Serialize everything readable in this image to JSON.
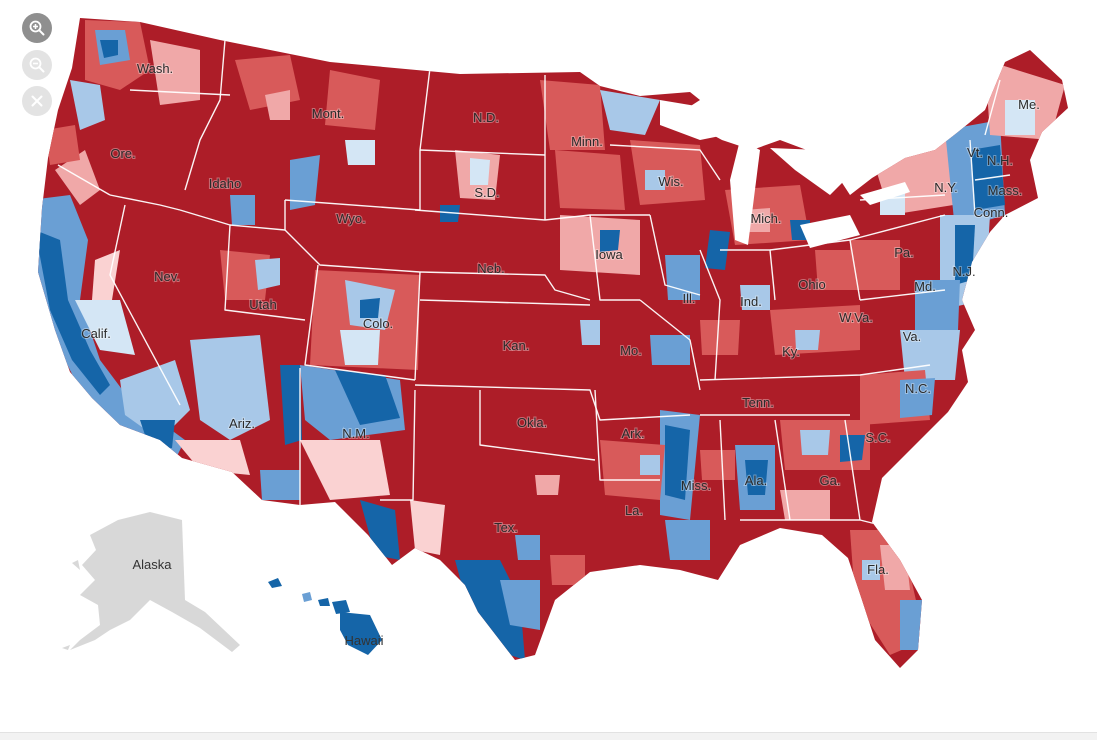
{
  "controls": {
    "zoom_in_icon": "zoom-in-icon",
    "zoom_out_icon": "zoom-out-icon",
    "close_icon": "close-icon"
  },
  "colors": {
    "strong_red": "#ad1d28",
    "mid_red": "#d85a5a",
    "light_red": "#f0a8a8",
    "pale_red": "#fad2d2",
    "strong_blue": "#1565a8",
    "mid_blue": "#6a9fd4",
    "light_blue": "#a8c8e8",
    "pale_blue": "#d4e6f5",
    "alaska_gray": "#d8d8d8",
    "border_white": "#ffffff"
  },
  "state_labels": {
    "wash": "Wash.",
    "ore": "Ore.",
    "calif": "Calif.",
    "nev": "Nev.",
    "idaho": "Idaho",
    "mont": "Mont.",
    "wyo": "Wyo.",
    "utah": "Utah",
    "ariz": "Ariz.",
    "colo": "Colo.",
    "nm": "N.M.",
    "nd": "N.D.",
    "sd": "S.D.",
    "neb": "Neb.",
    "kan": "Kan.",
    "okla": "Okla.",
    "tex": "Tex.",
    "minn": "Minn.",
    "iowa": "Iowa",
    "mo": "Mo.",
    "ark": "Ark.",
    "la": "La.",
    "wis": "Wis.",
    "ill": "Ill.",
    "mich": "Mich.",
    "ind": "Ind.",
    "ohio": "Ohio",
    "ky": "Ky.",
    "tenn": "Tenn.",
    "miss": "Miss.",
    "ala": "Ala.",
    "ga": "Ga.",
    "fla": "Fla.",
    "sc": "S.C.",
    "nc": "N.C.",
    "va": "Va.",
    "wva": "W.Va.",
    "pa": "Pa.",
    "ny": "N.Y.",
    "md": "Md.",
    "nj": "N.J.",
    "conn": "Conn.",
    "mass": "Mass.",
    "vt": "Vt.",
    "nh": "N.H.",
    "me": "Me.",
    "alaska": "Alaska",
    "hawaii": "Hawaii"
  }
}
